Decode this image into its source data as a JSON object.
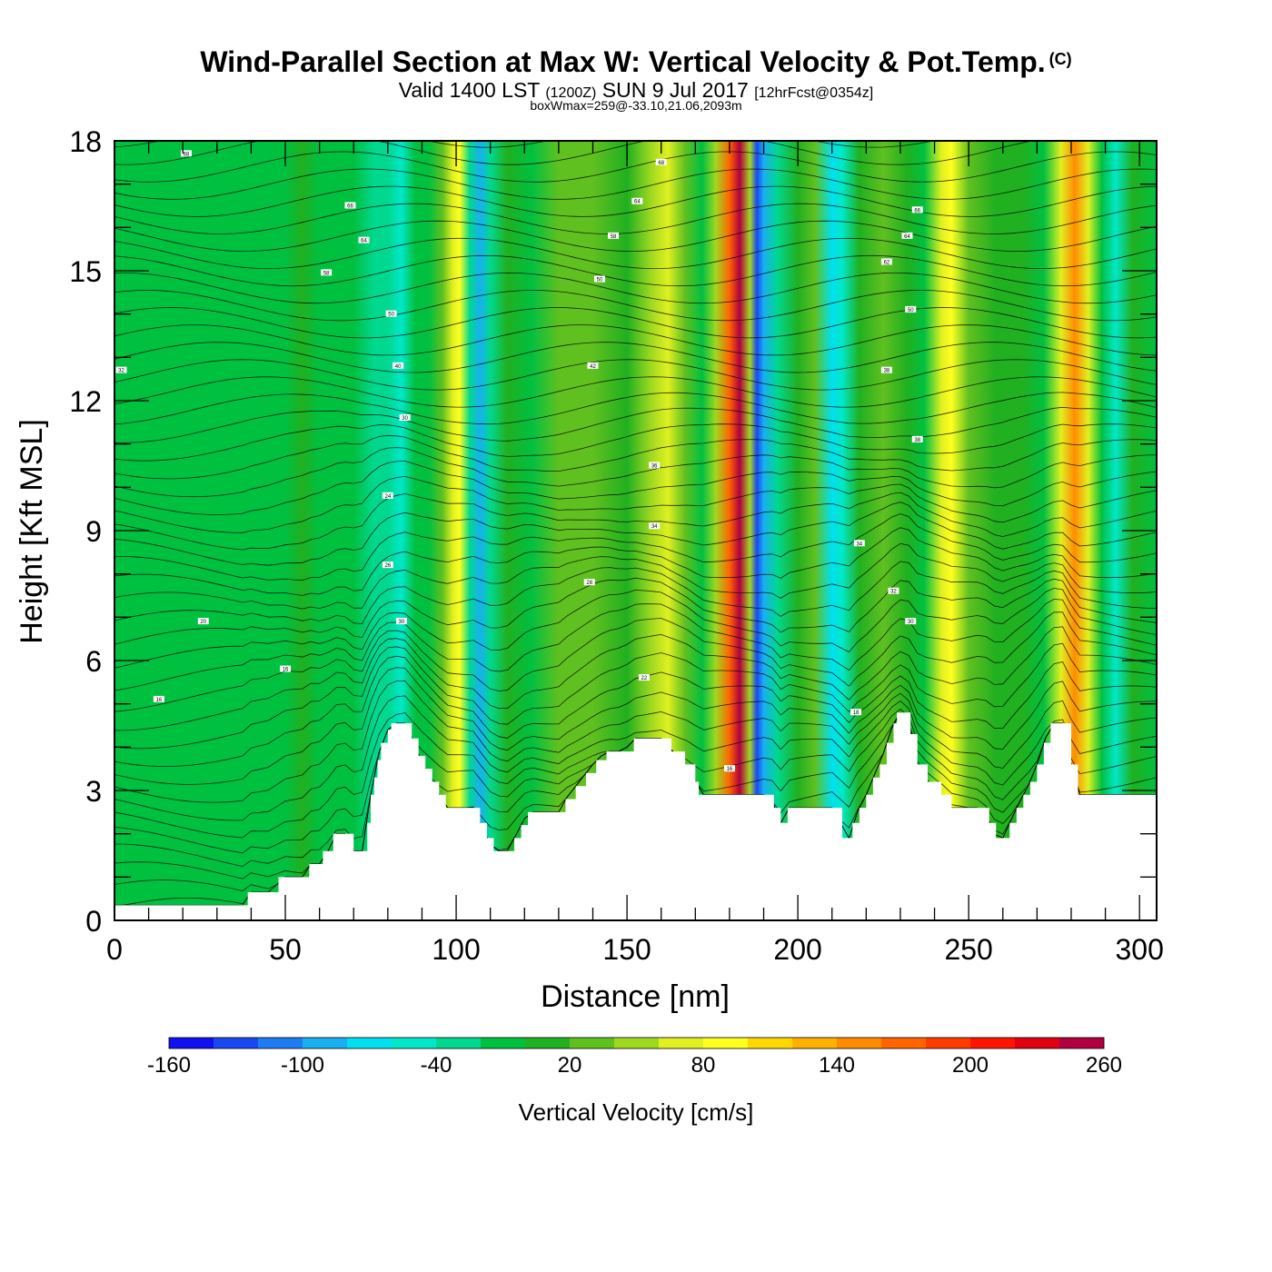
{
  "header": {
    "title": "Wind-Parallel Section at Max W: Vertical Velocity & Pot.Temp.",
    "copyright": "(C)",
    "valid_prefix": "Valid 1400 LST",
    "valid_utc": "(1200Z)",
    "valid_date": "SUN 9 Jul 2017",
    "forecast": "[12hrFcst@0354z]",
    "box_wmax": "boxWmax=259@-33.10,21.06,2093m"
  },
  "chart_data": {
    "type": "heatmap",
    "xlabel": "Distance [nm]",
    "ylabel": "Height [Kft MSL]",
    "xlim": [
      0,
      305
    ],
    "ylim": [
      0,
      18
    ],
    "xticks": [
      0,
      50,
      100,
      150,
      200,
      250,
      300
    ],
    "yticks": [
      0,
      3,
      6,
      9,
      12,
      15,
      18
    ],
    "colorbar": {
      "title": "Vertical Velocity [cm/s]",
      "labels": [
        "-160",
        "-100",
        "-40",
        "20",
        "80",
        "140",
        "200",
        "260"
      ],
      "levels": [
        -160,
        -140,
        -120,
        -100,
        -80,
        -60,
        -40,
        -20,
        0,
        20,
        40,
        60,
        80,
        100,
        120,
        140,
        160,
        180,
        200,
        220,
        240,
        260
      ],
      "colors": [
        "#1010f0",
        "#1a48f0",
        "#1e7cf0",
        "#18b0f0",
        "#00e0f0",
        "#00e8c8",
        "#00d890",
        "#00c040",
        "#20b020",
        "#60c020",
        "#a0d820",
        "#e0f020",
        "#ffff20",
        "#ffd800",
        "#ffb000",
        "#ff8c00",
        "#ff6400",
        "#ff3c00",
        "#ff1400",
        "#e00010",
        "#b00040"
      ]
    },
    "terrain": [
      [
        0,
        0.35
      ],
      [
        38,
        0.35
      ],
      [
        39,
        0.65
      ],
      [
        47,
        0.65
      ],
      [
        48,
        1.0
      ],
      [
        56,
        1.0
      ],
      [
        57,
        1.3
      ],
      [
        60,
        1.3
      ],
      [
        61,
        1.6
      ],
      [
        63,
        1.6
      ],
      [
        64,
        2.0
      ],
      [
        69,
        2.0
      ],
      [
        70,
        1.6
      ],
      [
        73,
        1.6
      ],
      [
        74,
        2.25
      ],
      [
        75,
        2.9
      ],
      [
        76,
        3.3
      ],
      [
        77,
        3.7
      ],
      [
        78,
        4.1
      ],
      [
        80,
        4.4
      ],
      [
        81,
        4.55
      ],
      [
        86,
        4.55
      ],
      [
        87,
        4.2
      ],
      [
        89,
        3.8
      ],
      [
        91,
        3.5
      ],
      [
        93,
        3.2
      ],
      [
        95,
        2.9
      ],
      [
        97,
        2.6
      ],
      [
        105,
        2.6
      ],
      [
        107,
        2.25
      ],
      [
        109,
        1.9
      ],
      [
        111,
        1.6
      ],
      [
        115,
        1.6
      ],
      [
        117,
        1.9
      ],
      [
        119,
        2.2
      ],
      [
        121,
        2.5
      ],
      [
        130,
        2.5
      ],
      [
        132,
        2.8
      ],
      [
        135,
        3.1
      ],
      [
        138,
        3.4
      ],
      [
        141,
        3.7
      ],
      [
        144,
        3.9
      ],
      [
        149,
        3.9
      ],
      [
        152,
        4.2
      ],
      [
        161,
        4.2
      ],
      [
        163,
        3.9
      ],
      [
        167,
        3.6
      ],
      [
        170,
        3.2
      ],
      [
        171,
        2.9
      ],
      [
        192,
        2.9
      ],
      [
        193,
        2.6
      ],
      [
        195,
        2.25
      ],
      [
        196,
        2.25
      ],
      [
        197,
        2.6
      ],
      [
        212,
        2.6
      ],
      [
        213,
        1.9
      ],
      [
        215,
        1.9
      ],
      [
        216,
        2.25
      ],
      [
        218,
        2.6
      ],
      [
        220,
        2.9
      ],
      [
        222,
        3.3
      ],
      [
        224,
        3.6
      ],
      [
        226,
        4.1
      ],
      [
        228,
        4.55
      ],
      [
        229,
        4.8
      ],
      [
        232,
        4.8
      ],
      [
        233,
        4.3
      ],
      [
        235,
        3.6
      ],
      [
        238,
        3.2
      ],
      [
        242,
        2.9
      ],
      [
        245,
        2.6
      ],
      [
        254,
        2.6
      ],
      [
        256,
        2.25
      ],
      [
        258,
        1.9
      ],
      [
        261,
        1.9
      ],
      [
        262,
        2.25
      ],
      [
        264,
        2.6
      ],
      [
        266,
        2.9
      ],
      [
        268,
        3.2
      ],
      [
        270,
        3.6
      ],
      [
        272,
        4.1
      ],
      [
        274,
        4.55
      ],
      [
        278,
        4.55
      ],
      [
        280,
        3.6
      ],
      [
        282,
        2.9
      ],
      [
        305,
        2.9
      ]
    ],
    "columns": [
      {
        "x": 0,
        "w": -4
      },
      {
        "x": 10,
        "w": -6
      },
      {
        "x": 20,
        "w": -2
      },
      {
        "x": 30,
        "w": -6
      },
      {
        "x": 40,
        "w": -8
      },
      {
        "x": 50,
        "w": -4
      },
      {
        "x": 55,
        "w": 2
      },
      {
        "x": 60,
        "w": -2
      },
      {
        "x": 70,
        "w": -8
      },
      {
        "x": 76,
        "w": -30
      },
      {
        "x": 80,
        "w": -40
      },
      {
        "x": 84,
        "w": -60
      },
      {
        "x": 88,
        "w": -20
      },
      {
        "x": 92,
        "w": -10
      },
      {
        "x": 96,
        "w": 30
      },
      {
        "x": 99,
        "w": 70
      },
      {
        "x": 101,
        "w": 90
      },
      {
        "x": 104,
        "w": -40
      },
      {
        "x": 107,
        "w": -90
      },
      {
        "x": 110,
        "w": -40
      },
      {
        "x": 115,
        "w": 10
      },
      {
        "x": 122,
        "w": -10
      },
      {
        "x": 130,
        "w": 30
      },
      {
        "x": 140,
        "w": 20
      },
      {
        "x": 150,
        "w": 10
      },
      {
        "x": 157,
        "w": 40
      },
      {
        "x": 162,
        "w": 70
      },
      {
        "x": 167,
        "w": 30
      },
      {
        "x": 172,
        "w": -5
      },
      {
        "x": 176,
        "w": 50
      },
      {
        "x": 180,
        "w": 160
      },
      {
        "x": 183,
        "w": 245
      },
      {
        "x": 186,
        "w": 40
      },
      {
        "x": 188,
        "w": -140
      },
      {
        "x": 190,
        "w": -100
      },
      {
        "x": 194,
        "w": -30
      },
      {
        "x": 200,
        "w": 10
      },
      {
        "x": 205,
        "w": 20
      },
      {
        "x": 210,
        "w": -70
      },
      {
        "x": 213,
        "w": -50
      },
      {
        "x": 218,
        "w": 10
      },
      {
        "x": 225,
        "w": 20
      },
      {
        "x": 232,
        "w": 10
      },
      {
        "x": 237,
        "w": -10
      },
      {
        "x": 242,
        "w": 60
      },
      {
        "x": 245,
        "w": 90
      },
      {
        "x": 250,
        "w": 30
      },
      {
        "x": 258,
        "w": 0
      },
      {
        "x": 266,
        "w": 10
      },
      {
        "x": 272,
        "w": -20
      },
      {
        "x": 277,
        "w": 70
      },
      {
        "x": 281,
        "w": 140
      },
      {
        "x": 285,
        "w": 70
      },
      {
        "x": 289,
        "w": -20
      },
      {
        "x": 293,
        "w": -60
      },
      {
        "x": 298,
        "w": 0
      },
      {
        "x": 305,
        "w": -10
      }
    ],
    "contour_labels": [
      {
        "text": "68",
        "x": 21,
        "y": 17.7
      },
      {
        "text": "66",
        "x": 69,
        "y": 16.5
      },
      {
        "text": "64",
        "x": 73,
        "y": 15.7
      },
      {
        "text": "58",
        "x": 62,
        "y": 14.95
      },
      {
        "text": "50",
        "x": 81,
        "y": 14.0
      },
      {
        "text": "40",
        "x": 83,
        "y": 12.8
      },
      {
        "text": "32",
        "x": 2,
        "y": 12.7
      },
      {
        "text": "30",
        "x": 85,
        "y": 11.6
      },
      {
        "text": "24",
        "x": 80,
        "y": 9.8
      },
      {
        "text": "26",
        "x": 80,
        "y": 8.2
      },
      {
        "text": "20",
        "x": 26,
        "y": 6.9
      },
      {
        "text": "16",
        "x": 50,
        "y": 5.8
      },
      {
        "text": "16",
        "x": 13,
        "y": 5.1
      },
      {
        "text": "30",
        "x": 84,
        "y": 6.9
      },
      {
        "text": "68",
        "x": 160,
        "y": 17.5
      },
      {
        "text": "64",
        "x": 153,
        "y": 16.6
      },
      {
        "text": "58",
        "x": 146,
        "y": 15.8
      },
      {
        "text": "50",
        "x": 142,
        "y": 14.8
      },
      {
        "text": "42",
        "x": 140,
        "y": 12.8
      },
      {
        "text": "36",
        "x": 158,
        "y": 10.5
      },
      {
        "text": "34",
        "x": 158,
        "y": 9.1
      },
      {
        "text": "28",
        "x": 139,
        "y": 7.8
      },
      {
        "text": "22",
        "x": 155,
        "y": 5.6
      },
      {
        "text": "16",
        "x": 180,
        "y": 3.5
      },
      {
        "text": "66",
        "x": 235,
        "y": 16.4
      },
      {
        "text": "64",
        "x": 232,
        "y": 15.8
      },
      {
        "text": "62",
        "x": 226,
        "y": 15.2
      },
      {
        "text": "50",
        "x": 233,
        "y": 14.1
      },
      {
        "text": "38",
        "x": 226,
        "y": 12.7
      },
      {
        "text": "38",
        "x": 235,
        "y": 11.1
      },
      {
        "text": "34",
        "x": 218,
        "y": 8.7
      },
      {
        "text": "32",
        "x": 228,
        "y": 7.6
      },
      {
        "text": "30",
        "x": 233,
        "y": 6.9
      },
      {
        "text": "18",
        "x": 217,
        "y": 4.8
      }
    ]
  }
}
